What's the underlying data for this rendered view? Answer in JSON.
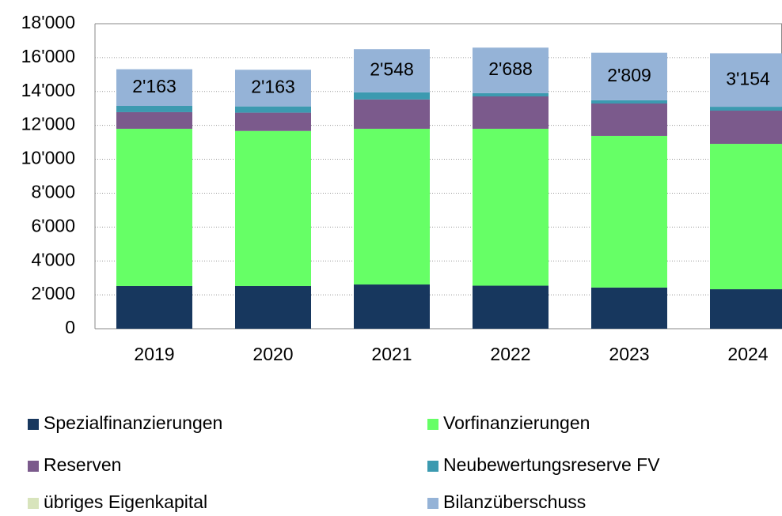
{
  "chart_data": {
    "type": "stacked_bar",
    "categories": [
      "2019",
      "2020",
      "2021",
      "2022",
      "2023",
      "2024"
    ],
    "series": [
      {
        "name": "Spezialfinanzierungen",
        "color": "#17375e",
        "values": [
          2520,
          2520,
          2610,
          2540,
          2430,
          2330
        ]
      },
      {
        "name": "Vorfinanzierungen",
        "color": "#66ff66",
        "values": [
          9280,
          9150,
          9190,
          9260,
          8950,
          8580
        ]
      },
      {
        "name": "Reserven",
        "color": "#7b5a8c",
        "values": [
          980,
          1080,
          1730,
          1910,
          1910,
          1960
        ]
      },
      {
        "name": "Neubewertungsreserve FV",
        "color": "#3c9ab0",
        "values": [
          370,
          370,
          420,
          190,
          190,
          230
        ]
      },
      {
        "name": "übriges Eigenkapital",
        "color": "#d8e4bc",
        "values": [
          0,
          0,
          0,
          0,
          0,
          0
        ]
      },
      {
        "name": "Bilanzüberschuss",
        "color": "#95b3d7",
        "values": [
          2163,
          2163,
          2548,
          2688,
          2809,
          3154
        ],
        "value_labels": [
          "2'163",
          "2'163",
          "2'548",
          "2'688",
          "2'809",
          "3'154"
        ]
      }
    ],
    "ylim": [
      0,
      18000
    ],
    "yticks": [
      0,
      {
        "value": 2000,
        "label": "2'000"
      },
      {
        "value": 4000,
        "label": "4'000"
      },
      {
        "value": 6000,
        "label": "6'000"
      },
      {
        "value": 8000,
        "label": "8'000"
      },
      {
        "value": 10000,
        "label": "10'000"
      },
      {
        "value": 12000,
        "label": "12'000"
      },
      {
        "value": 14000,
        "label": "14'000"
      },
      {
        "value": 16000,
        "label": "16'000"
      },
      {
        "value": 18000,
        "label": "18'000"
      }
    ],
    "grid": true
  }
}
